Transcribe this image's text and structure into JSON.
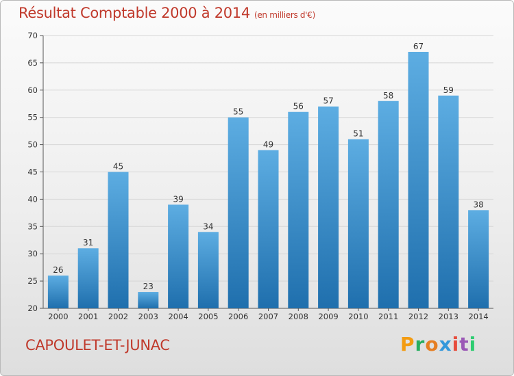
{
  "header": {
    "title": "Résultat Comptable 2000 à 2014",
    "subtitle": "(en milliers d'€)"
  },
  "footer": {
    "commune": "CAPOULET-ET-JUNAC",
    "brand": [
      "P",
      "r",
      "o",
      "x",
      "i",
      "t",
      "i"
    ]
  },
  "colors": {
    "title": "#c0392b",
    "bar_top": "#5dade2",
    "bar_bottom": "#1f6fad",
    "brand": [
      "#f39c12",
      "#27ae60",
      "#e67e22",
      "#3498db",
      "#e74c3c",
      "#9b59b6",
      "#2ecc71"
    ]
  },
  "chart_data": {
    "type": "bar",
    "categories": [
      "2000",
      "2001",
      "2002",
      "2003",
      "2004",
      "2005",
      "2006",
      "2007",
      "2008",
      "2009",
      "2010",
      "2011",
      "2012",
      "2013",
      "2014"
    ],
    "values": [
      26,
      31,
      45,
      23,
      39,
      34,
      55,
      49,
      56,
      57,
      51,
      58,
      67,
      59,
      38
    ],
    "ylim": [
      20,
      70
    ],
    "yticks": [
      20,
      25,
      30,
      35,
      40,
      45,
      50,
      55,
      60,
      65,
      70
    ],
    "grid": true
  }
}
